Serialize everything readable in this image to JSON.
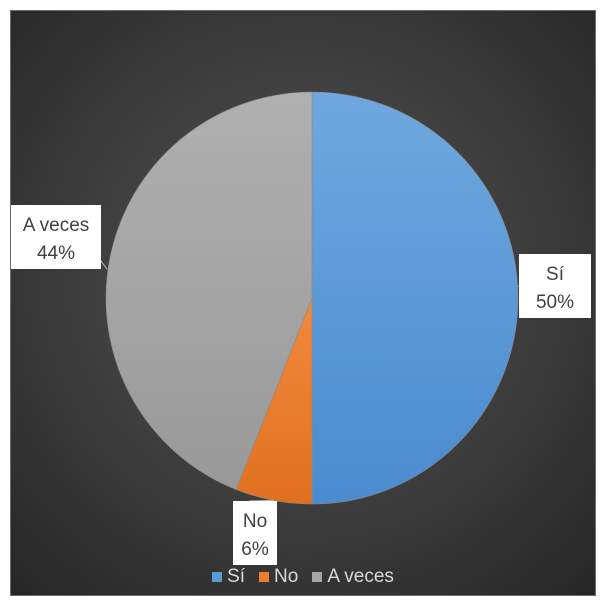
{
  "chart_data": {
    "type": "pie",
    "title": "",
    "categories": [
      "Sí",
      "No",
      "A veces"
    ],
    "values": [
      50,
      6,
      44
    ],
    "labels": [
      {
        "name": "Sí",
        "value": "50%"
      },
      {
        "name": "No",
        "value": "6%"
      },
      {
        "name": "A veces",
        "value": "44%"
      }
    ],
    "colors": [
      "#5b9bd5",
      "#ed7d31",
      "#a5a5a5"
    ],
    "legend": {
      "position": "bottom",
      "entries": [
        "Sí",
        "No",
        "A veces"
      ]
    }
  }
}
